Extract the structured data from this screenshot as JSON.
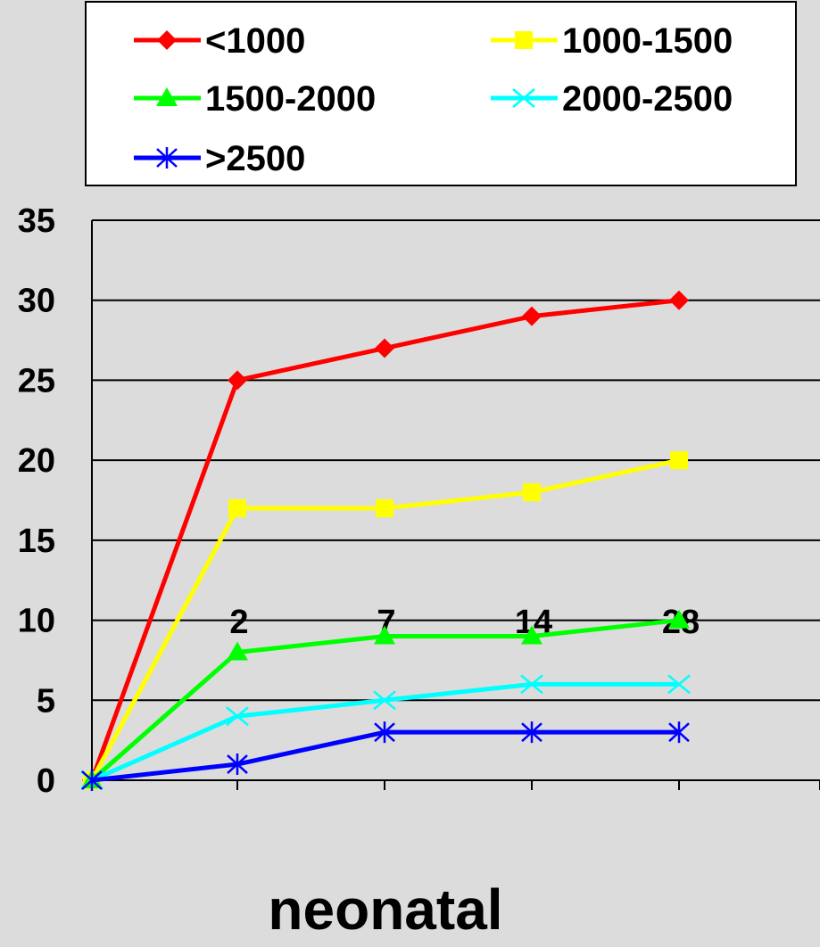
{
  "chart_data": {
    "type": "line",
    "xlabel": "neonatal",
    "ylabel": "",
    "x_categories": [
      "",
      "2",
      "7",
      "14",
      "28"
    ],
    "ylim": [
      0,
      35
    ],
    "yticks": [
      0,
      5,
      10,
      15,
      20,
      25,
      30,
      35
    ],
    "grid": "horizontal",
    "legend_position": "top",
    "series": [
      {
        "name": "<1000",
        "color": "#ff0000",
        "marker": "diamond",
        "values": [
          0,
          25,
          27,
          29,
          30
        ]
      },
      {
        "name": "1000-1500",
        "color": "#ffff00",
        "marker": "square",
        "values": [
          0,
          17,
          17,
          18,
          20
        ]
      },
      {
        "name": "1500-2000",
        "color": "#00ff00",
        "marker": "triangle",
        "values": [
          0,
          8,
          9,
          9,
          10
        ]
      },
      {
        "name": "2000-2500",
        "color": "#00ffff",
        "marker": "x",
        "values": [
          0,
          4,
          5,
          6,
          6
        ]
      },
      {
        "name": ">2500",
        "color": "#0000ff",
        "marker": "asterisk",
        "values": [
          0,
          1,
          3,
          3,
          3
        ]
      }
    ]
  }
}
